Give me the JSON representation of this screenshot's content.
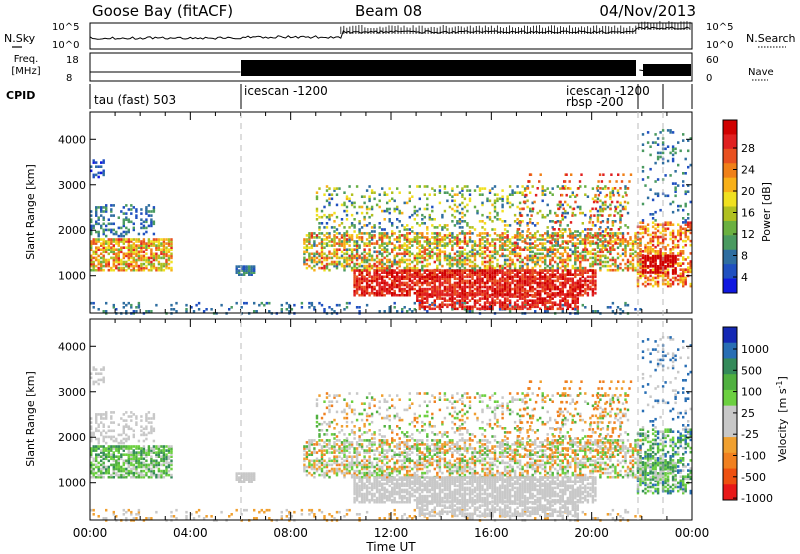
{
  "header": {
    "station": "Goose Bay (fitACF)",
    "beam": "Beam 08",
    "date": "04/Nov/2013"
  },
  "noise_panel": {
    "left_label": "N.Sky",
    "left_ticks": [
      "10^5",
      "10^0"
    ],
    "right_ticks": [
      "10^5",
      "10^0"
    ],
    "right_label": "N.Search"
  },
  "freq_panel": {
    "left_label_top": "Freq.",
    "left_label_bottom": "[MHz]",
    "left_ticks": [
      "18",
      "8"
    ],
    "right_ticks": [
      "60",
      "0"
    ],
    "right_label": "Nave"
  },
  "cpid": {
    "label": "CPID",
    "entries": [
      {
        "text": "tau (fast) 503",
        "start_hour": 0.0
      },
      {
        "text": "icescan -1200",
        "start_hour": 6.0
      },
      {
        "text": "icescan -1200",
        "start_hour": 21.7
      },
      {
        "text": "rbsp -200",
        "start_hour": 21.7
      },
      {
        "text": "",
        "start_hour": 22.9
      }
    ]
  },
  "chart_data": [
    {
      "type": "heatmap",
      "quantity": "Power",
      "ylabel": "Slant Range [km]",
      "xlabel": "Time UT",
      "x_ticks": [
        "00:00",
        "04:00",
        "08:00",
        "12:00",
        "16:00",
        "20:00",
        "00:00"
      ],
      "y_ticks": [
        "1000",
        "2000",
        "3000",
        "4000"
      ],
      "xlim": [
        0,
        24
      ],
      "ylim": [
        180,
        4600
      ],
      "colorbar": {
        "label": "Power [dB]",
        "tick_labels": [
          "4",
          "8",
          "12",
          "16",
          "20",
          "24",
          "28"
        ],
        "range": [
          0,
          30
        ],
        "colors": [
          "#1018e0",
          "#2050c0",
          "#2f6ea0",
          "#4a9a60",
          "#6ab040",
          "#b0c020",
          "#f0e020",
          "#f8b018",
          "#f08018",
          "#e85020",
          "#e02020",
          "#d00000"
        ]
      }
    },
    {
      "type": "heatmap",
      "quantity": "Velocity",
      "ylabel": "Slant Range [km]",
      "xlabel": "Time UT",
      "x_ticks": [
        "00:00",
        "04:00",
        "08:00",
        "12:00",
        "16:00",
        "20:00",
        "00:00"
      ],
      "y_ticks": [
        "1000",
        "2000",
        "3000",
        "4000"
      ],
      "xlim": [
        0,
        24
      ],
      "ylim": [
        180,
        4600
      ],
      "colorbar": {
        "label_main": "Velocity",
        "label_unit": "[m s",
        "label_sup": "-1",
        "label_end": "]",
        "tick_labels": [
          "1000",
          "500",
          "100",
          "25",
          "-25",
          "-100",
          "-500",
          "-1000"
        ],
        "colors": [
          "#1428b4",
          "#286eb4",
          "#348a5a",
          "#50b040",
          "#6cd040",
          "#c8c8c8",
          "#c8c8c8",
          "#f0a030",
          "#f08020",
          "#ee5010",
          "#e81818"
        ]
      }
    }
  ],
  "time_axis_label": "Time UT"
}
